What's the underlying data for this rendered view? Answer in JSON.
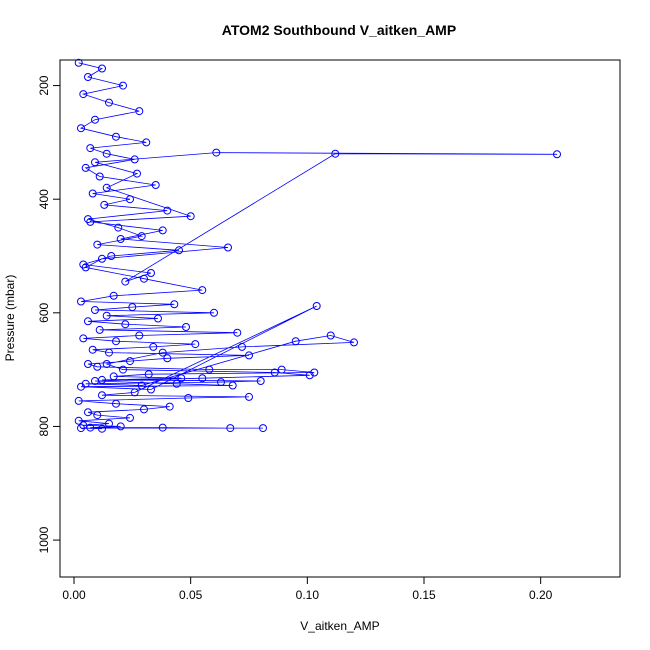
{
  "chart_data": {
    "type": "scatter",
    "title": "ATOM2 Southbound V_aitken_AMP",
    "xlabel": "V_aitken_AMP",
    "ylabel": "Pressure (mbar)",
    "xlim": [
      -0.006,
      0.234
    ],
    "ylim": [
      1065,
      155
    ],
    "y_reversed": true,
    "x_ticks": [
      0.0,
      0.05,
      0.1,
      0.15,
      0.2
    ],
    "x_tick_labels": [
      "0.00",
      "0.05",
      "0.10",
      "0.15",
      "0.20"
    ],
    "y_ticks": [
      200,
      400,
      600,
      800,
      1000
    ],
    "y_tick_labels": [
      "200",
      "400",
      "600",
      "800",
      "1000"
    ],
    "grid": false,
    "legend": "none",
    "series": [
      {
        "color": "#0000ff",
        "marker": "open-circle",
        "connected": true,
        "x": [
          0.002,
          0.012,
          0.006,
          0.021,
          0.004,
          0.015,
          0.028,
          0.009,
          0.003,
          0.018,
          0.031,
          0.007,
          0.014,
          0.026,
          0.005,
          0.011,
          0.035,
          0.008,
          0.024,
          0.013,
          0.04,
          0.006,
          0.019,
          0.029,
          0.01,
          0.045,
          0.016,
          0.004,
          0.033,
          0.022,
          0.112,
          0.207,
          0.061,
          0.009,
          0.027,
          0.014,
          0.05,
          0.007,
          0.038,
          0.02,
          0.066,
          0.012,
          0.005,
          0.03,
          0.055,
          0.017,
          0.003,
          0.043,
          0.025,
          0.009,
          0.06,
          0.014,
          0.036,
          0.006,
          0.022,
          0.048,
          0.011,
          0.07,
          0.028,
          0.004,
          0.018,
          0.052,
          0.034,
          0.008,
          0.015,
          0.075,
          0.04,
          0.024,
          0.006,
          0.01,
          0.058,
          0.089,
          0.103,
          0.032,
          0.017,
          0.046,
          0.012,
          0.08,
          0.063,
          0.005,
          0.029,
          0.095,
          0.11,
          0.12,
          0.072,
          0.038,
          0.014,
          0.021,
          0.086,
          0.101,
          0.055,
          0.009,
          0.044,
          0.068,
          0.003,
          0.033,
          0.104,
          0.026,
          0.012,
          0.075,
          0.049,
          0.002,
          0.018,
          0.041,
          0.03,
          0.006,
          0.01,
          0.024,
          0.002,
          0.015,
          0.004,
          0.02,
          0.007,
          0.038,
          0.067,
          0.081,
          0.003,
          0.012
        ],
        "y": [
          160,
          170,
          185,
          200,
          215,
          230,
          245,
          260,
          275,
          290,
          300,
          310,
          320,
          330,
          345,
          360,
          375,
          390,
          400,
          410,
          420,
          435,
          450,
          465,
          480,
          490,
          500,
          515,
          530,
          545,
          320,
          321,
          318,
          335,
          355,
          380,
          430,
          440,
          455,
          470,
          485,
          505,
          520,
          540,
          560,
          570,
          580,
          585,
          590,
          595,
          600,
          605,
          610,
          615,
          620,
          625,
          630,
          635,
          640,
          645,
          650,
          655,
          660,
          665,
          670,
          675,
          680,
          685,
          690,
          695,
          700,
          700,
          705,
          708,
          712,
          715,
          718,
          720,
          722,
          725,
          728,
          650,
          640,
          652,
          660,
          670,
          690,
          700,
          705,
          710,
          715,
          720,
          725,
          728,
          730,
          735,
          588,
          740,
          745,
          748,
          750,
          755,
          760,
          765,
          770,
          775,
          780,
          785,
          790,
          795,
          798,
          800,
          802,
          802,
          803,
          803,
          803,
          804
        ]
      }
    ]
  }
}
